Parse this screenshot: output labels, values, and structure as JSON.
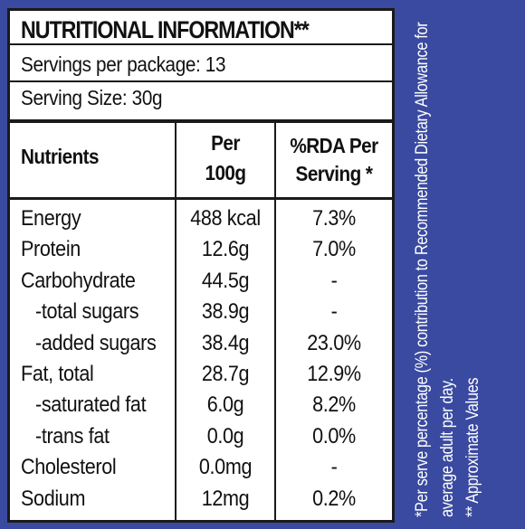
{
  "title": "NUTRITIONAL INFORMATION**",
  "servings_per_package": "Servings per package: 13",
  "serving_size": "Serving Size: 30g",
  "table": {
    "headers": {
      "nutrients": "Nutrients",
      "per_100g_line1": "Per",
      "per_100g_line2": "100g",
      "rda_line1": "%RDA Per",
      "rda_line2": "Serving *"
    },
    "rows": [
      {
        "name": "Energy",
        "per_100g": "488 kcal",
        "rda": "7.3%"
      },
      {
        "name": "Protein",
        "per_100g": "12.6g",
        "rda": "7.0%"
      },
      {
        "name": "Carbohydrate",
        "per_100g": "44.5g",
        "rda": "-"
      },
      {
        "name": "-total sugars",
        "per_100g": "38.9g",
        "rda": "-"
      },
      {
        "name": "-added sugars",
        "per_100g": "38.4g",
        "rda": "23.0%"
      },
      {
        "name": "Fat, total",
        "per_100g": "28.7g",
        "rda": "12.9%"
      },
      {
        "name": "-saturated fat",
        "per_100g": "6.0g",
        "rda": "8.2%"
      },
      {
        "name": "-trans fat",
        "per_100g": "0.0g",
        "rda": "0.0%"
      },
      {
        "name": "Cholesterol",
        "per_100g": "0.0mg",
        "rda": "-"
      },
      {
        "name": "Sodium",
        "per_100g": "12mg",
        "rda": "0.2%"
      }
    ]
  },
  "footnotes": {
    "line1": "*Per serve percentage (%) contribution to Recommended Dietary Allowance for",
    "line2": "average adult per day.",
    "line3": "** Approximate Values"
  },
  "colors": {
    "background": "#3a4aa0",
    "panel": "#ffffff",
    "text": "#111111"
  }
}
